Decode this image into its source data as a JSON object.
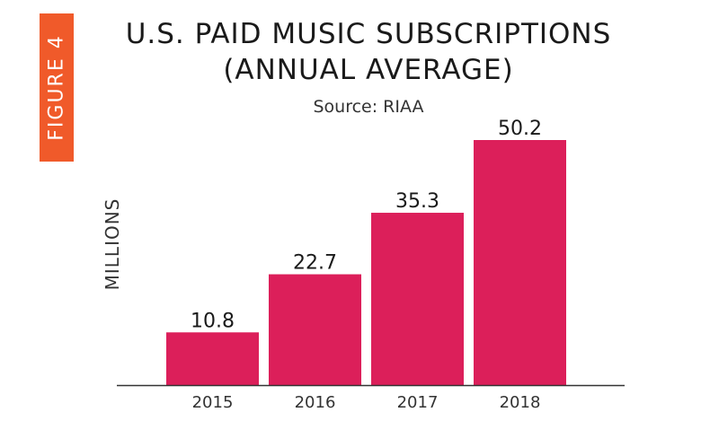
{
  "figure_label": "FIGURE 4",
  "colors": {
    "bar": "#dc1f5a",
    "tag": "#f05a2a",
    "axis": "#333333",
    "text": "#1a1a1a"
  },
  "chart_data": {
    "type": "bar",
    "title": "U.S. PAID MUSIC SUBSCRIPTIONS",
    "subtitle": "(ANNUAL AVERAGE)",
    "source": "Source: RIAA",
    "xlabel": "",
    "ylabel": "MILLIONS",
    "categories": [
      "2015",
      "2016",
      "2017",
      "2018"
    ],
    "values": [
      10.8,
      22.7,
      35.3,
      50.2
    ],
    "data_labels": [
      "10.8",
      "22.7",
      "35.3",
      "50.2"
    ],
    "ylim": [
      0,
      50.2
    ],
    "grid": false,
    "legend": "none"
  }
}
